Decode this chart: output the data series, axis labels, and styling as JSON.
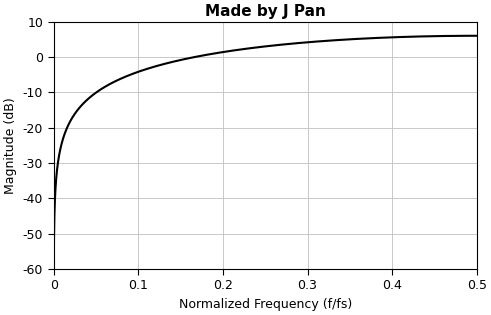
{
  "title": "Made by J Pan",
  "xlabel": "Normalized Frequency (f/fs)",
  "ylabel": "Magnitude (dB)",
  "xlim": [
    0,
    0.5
  ],
  "ylim": [
    -60,
    10
  ],
  "xticks": [
    0,
    0.1,
    0.2,
    0.3,
    0.4,
    0.5
  ],
  "yticks": [
    -60,
    -50,
    -40,
    -30,
    -20,
    -10,
    0,
    10
  ],
  "line_color": "#000000",
  "line_width": 1.5,
  "bg_color": "#ffffff",
  "grid_color": "#c0c0c0",
  "title_fontsize": 11,
  "label_fontsize": 9,
  "tick_fontsize": 9,
  "fig_width": 4.91,
  "fig_height": 3.15,
  "dpi": 100
}
